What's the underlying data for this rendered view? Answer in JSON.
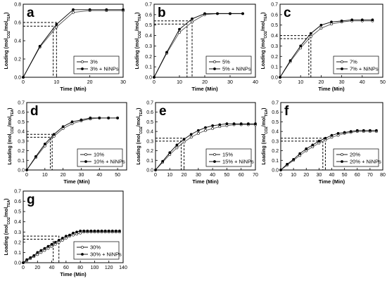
{
  "chart_data": [
    {
      "type": "line",
      "panel_label": "a",
      "xlabel": "Time (Min)",
      "ylabel": "Loading (mol_CO2/mol_TEA)",
      "xlim": [
        0,
        30
      ],
      "ylim": [
        0,
        0.8
      ],
      "xticks": [
        0,
        10,
        20,
        30
      ],
      "yticks": [
        0.0,
        0.2,
        0.4,
        0.6,
        0.8
      ],
      "legend_position": "bottom-right",
      "series": [
        {
          "name": "3%",
          "marker": "open-circle",
          "x": [
            0,
            5,
            10,
            15,
            20,
            25,
            30
          ],
          "y": [
            0.0,
            0.33,
            0.55,
            0.71,
            0.73,
            0.73,
            0.73
          ]
        },
        {
          "name": "3% + NiNPs",
          "marker": "filled-circle",
          "x": [
            0,
            5,
            10,
            15,
            20,
            25,
            30
          ],
          "y": [
            0.0,
            0.34,
            0.58,
            0.74,
            0.74,
            0.74,
            0.74
          ]
        }
      ],
      "guides": [
        {
          "x": 9,
          "y": 0.56
        },
        {
          "x": 10,
          "y": 0.6
        }
      ]
    },
    {
      "type": "line",
      "panel_label": "b",
      "xlabel": "Time (Min)",
      "ylabel": "Loading (mol_CO2/mol_TEA)",
      "xlim": [
        0,
        40
      ],
      "ylim": [
        0,
        0.7
      ],
      "xticks": [
        0,
        10,
        20,
        30,
        40
      ],
      "yticks": [
        0.0,
        0.1,
        0.2,
        0.3,
        0.4,
        0.5,
        0.6,
        0.7
      ],
      "legend_position": "bottom-right",
      "series": [
        {
          "name": "5%",
          "marker": "open-circle",
          "x": [
            0,
            5,
            10,
            15,
            20,
            25,
            30,
            35
          ],
          "y": [
            0.0,
            0.23,
            0.43,
            0.53,
            0.6,
            0.61,
            0.61,
            0.61
          ]
        },
        {
          "name": "5% + NiNPs",
          "marker": "filled-circle",
          "x": [
            0,
            5,
            10,
            15,
            20,
            25,
            30,
            35
          ],
          "y": [
            0.0,
            0.24,
            0.46,
            0.56,
            0.61,
            0.61,
            0.61,
            0.61
          ]
        }
      ],
      "guides": [
        {
          "x": 13,
          "y": 0.51
        },
        {
          "x": 15,
          "y": 0.54
        }
      ]
    },
    {
      "type": "line",
      "panel_label": "c",
      "xlabel": "Time (Min)",
      "ylabel": "Loading (mol_CO2/mol_TEA)",
      "xlim": [
        0,
        50
      ],
      "ylim": [
        0,
        0.7
      ],
      "xticks": [
        0,
        10,
        20,
        30,
        40,
        50
      ],
      "yticks": [
        0.0,
        0.1,
        0.2,
        0.3,
        0.4,
        0.5,
        0.6,
        0.7
      ],
      "legend_position": "bottom-right",
      "series": [
        {
          "name": "7%",
          "marker": "open-circle",
          "x": [
            0,
            5,
            10,
            15,
            20,
            25,
            30,
            35,
            40,
            45
          ],
          "y": [
            0.0,
            0.15,
            0.28,
            0.39,
            0.47,
            0.51,
            0.53,
            0.54,
            0.54,
            0.54
          ]
        },
        {
          "name": "7% + NiNPs",
          "marker": "filled-circle",
          "x": [
            0,
            5,
            10,
            15,
            20,
            25,
            30,
            35,
            40,
            45
          ],
          "y": [
            0.0,
            0.16,
            0.3,
            0.42,
            0.5,
            0.53,
            0.54,
            0.55,
            0.55,
            0.55
          ]
        }
      ],
      "guides": [
        {
          "x": 14,
          "y": 0.37
        },
        {
          "x": 15,
          "y": 0.4
        }
      ]
    },
    {
      "type": "line",
      "panel_label": "d",
      "xlabel": "Time (Min)",
      "ylabel": "Loading (mol_CO2/mol_TEA)",
      "xlim": [
        0,
        55
      ],
      "ylim": [
        0,
        0.7
      ],
      "xticks": [
        0,
        10,
        20,
        30,
        40,
        50
      ],
      "yticks": [
        0.0,
        0.1,
        0.2,
        0.3,
        0.4,
        0.5,
        0.6,
        0.7
      ],
      "legend_position": "bottom-right",
      "series": [
        {
          "name": "10%",
          "marker": "open-circle",
          "x": [
            0,
            5,
            10,
            15,
            20,
            25,
            30,
            35,
            40,
            45,
            50
          ],
          "y": [
            0.0,
            0.13,
            0.25,
            0.35,
            0.43,
            0.48,
            0.51,
            0.53,
            0.54,
            0.54,
            0.54
          ]
        },
        {
          "name": "10% + NiNPs",
          "marker": "filled-circle",
          "x": [
            0,
            5,
            10,
            15,
            20,
            25,
            30,
            35,
            40,
            45,
            50
          ],
          "y": [
            0.0,
            0.14,
            0.27,
            0.37,
            0.45,
            0.5,
            0.52,
            0.54,
            0.54,
            0.54,
            0.54
          ]
        }
      ],
      "guides": [
        {
          "x": 13,
          "y": 0.34
        },
        {
          "x": 14,
          "y": 0.37
        }
      ]
    },
    {
      "type": "line",
      "panel_label": "e",
      "xlabel": "Time (Min)",
      "ylabel": "Loading (mol_CO2/mol_TEA)",
      "xlim": [
        0,
        70
      ],
      "ylim": [
        0,
        0.7
      ],
      "xticks": [
        0,
        10,
        20,
        30,
        40,
        50,
        60,
        70
      ],
      "yticks": [
        0.0,
        0.1,
        0.2,
        0.3,
        0.4,
        0.5,
        0.6,
        0.7
      ],
      "legend_position": "bottom-right",
      "series": [
        {
          "name": "15%",
          "marker": "open-circle",
          "x": [
            0,
            5,
            10,
            15,
            20,
            25,
            30,
            35,
            40,
            45,
            50,
            55,
            60,
            65,
            70
          ],
          "y": [
            0.0,
            0.08,
            0.16,
            0.23,
            0.29,
            0.34,
            0.38,
            0.41,
            0.43,
            0.45,
            0.46,
            0.47,
            0.47,
            0.47,
            0.47
          ]
        },
        {
          "name": "15% + NiNPs",
          "marker": "filled-circle",
          "x": [
            0,
            5,
            10,
            15,
            20,
            25,
            30,
            35,
            40,
            45,
            50,
            55,
            60,
            65,
            70
          ],
          "y": [
            0.0,
            0.09,
            0.18,
            0.26,
            0.32,
            0.37,
            0.41,
            0.44,
            0.46,
            0.47,
            0.48,
            0.48,
            0.48,
            0.48,
            0.48
          ]
        }
      ],
      "guides": [
        {
          "x": 18,
          "y": 0.3
        },
        {
          "x": 20,
          "y": 0.33
        }
      ]
    },
    {
      "type": "line",
      "panel_label": "f",
      "xlabel": "Time (Min)",
      "ylabel": "Loading (mol_CO2/mol_TEA)",
      "xlim": [
        0,
        80
      ],
      "ylim": [
        0,
        0.7
      ],
      "xticks": [
        0,
        10,
        20,
        30,
        40,
        50,
        60,
        70,
        80
      ],
      "yticks": [
        0.0,
        0.1,
        0.2,
        0.3,
        0.4,
        0.5,
        0.6,
        0.7
      ],
      "legend_position": "bottom-right",
      "series": [
        {
          "name": "20%",
          "marker": "open-circle",
          "x": [
            0,
            5,
            10,
            15,
            20,
            25,
            30,
            35,
            40,
            45,
            50,
            55,
            60,
            65,
            70,
            75
          ],
          "y": [
            0.0,
            0.05,
            0.1,
            0.15,
            0.2,
            0.24,
            0.28,
            0.31,
            0.34,
            0.36,
            0.38,
            0.39,
            0.4,
            0.4,
            0.4,
            0.4
          ]
        },
        {
          "name": "20% + NiNPs",
          "marker": "filled-circle",
          "x": [
            0,
            5,
            10,
            15,
            20,
            25,
            30,
            35,
            40,
            45,
            50,
            55,
            60,
            65,
            70,
            75
          ],
          "y": [
            0.0,
            0.06,
            0.11,
            0.17,
            0.22,
            0.26,
            0.3,
            0.33,
            0.36,
            0.38,
            0.39,
            0.4,
            0.41,
            0.41,
            0.41,
            0.41
          ]
        }
      ],
      "guides": [
        {
          "x": 33,
          "y": 0.3
        },
        {
          "x": 35,
          "y": 0.33
        }
      ]
    },
    {
      "type": "line",
      "panel_label": "g",
      "xlabel": "Time (Min)",
      "ylabel": "Loading (mol_CO2/mol_TEA)",
      "xlim": [
        0,
        140
      ],
      "ylim": [
        0,
        0.7
      ],
      "xticks": [
        0,
        20,
        40,
        60,
        80,
        100,
        120,
        140
      ],
      "yticks": [
        0.0,
        0.1,
        0.2,
        0.3,
        0.4,
        0.5,
        0.6,
        0.7
      ],
      "legend_position": "bottom-right",
      "series": [
        {
          "name": "30%",
          "marker": "open-circle",
          "x": [
            0,
            5,
            10,
            15,
            20,
            25,
            30,
            35,
            40,
            45,
            50,
            55,
            60,
            65,
            70,
            75,
            80,
            85,
            90,
            95,
            100,
            105,
            110,
            115,
            120,
            125,
            130,
            135
          ],
          "y": [
            0.0,
            0.02,
            0.04,
            0.06,
            0.08,
            0.1,
            0.12,
            0.14,
            0.16,
            0.18,
            0.2,
            0.22,
            0.24,
            0.26,
            0.27,
            0.28,
            0.29,
            0.3,
            0.3,
            0.3,
            0.3,
            0.3,
            0.3,
            0.3,
            0.3,
            0.3,
            0.3,
            0.3
          ]
        },
        {
          "name": "30% + NiNPs",
          "marker": "filled-circle",
          "x": [
            0,
            5,
            10,
            15,
            20,
            25,
            30,
            35,
            40,
            45,
            50,
            55,
            60,
            65,
            70,
            75,
            80,
            85,
            90,
            95,
            100,
            105,
            110,
            115,
            120,
            125,
            130,
            135
          ],
          "y": [
            0.0,
            0.03,
            0.05,
            0.07,
            0.1,
            0.12,
            0.14,
            0.16,
            0.18,
            0.2,
            0.22,
            0.24,
            0.26,
            0.27,
            0.29,
            0.3,
            0.31,
            0.31,
            0.31,
            0.31,
            0.31,
            0.31,
            0.31,
            0.31,
            0.31,
            0.31,
            0.31,
            0.31
          ]
        }
      ],
      "guides": [
        {
          "x": 42,
          "y": 0.23
        },
        {
          "x": 50,
          "y": 0.26
        }
      ]
    }
  ]
}
